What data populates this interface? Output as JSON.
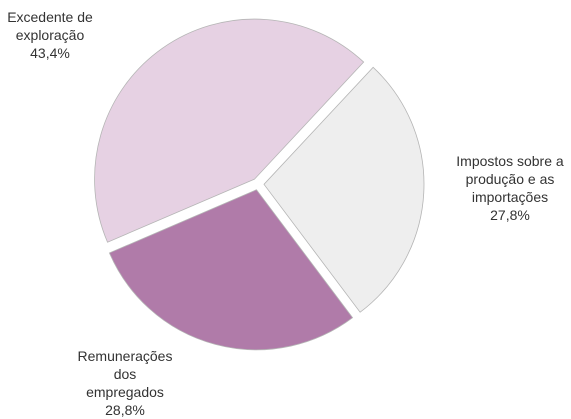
{
  "chart_data": {
    "type": "pie",
    "categories": [
      "Excedente de exploração",
      "Impostos sobre a produção e as importações",
      "Remunerações dos empregados"
    ],
    "values": [
      43.4,
      27.8,
      28.8
    ],
    "value_labels": [
      "43,4%",
      "27,8%",
      "28,8%"
    ],
    "colors": [
      "#e6d1e3",
      "#eeeeee",
      "#b07ba9"
    ]
  }
}
